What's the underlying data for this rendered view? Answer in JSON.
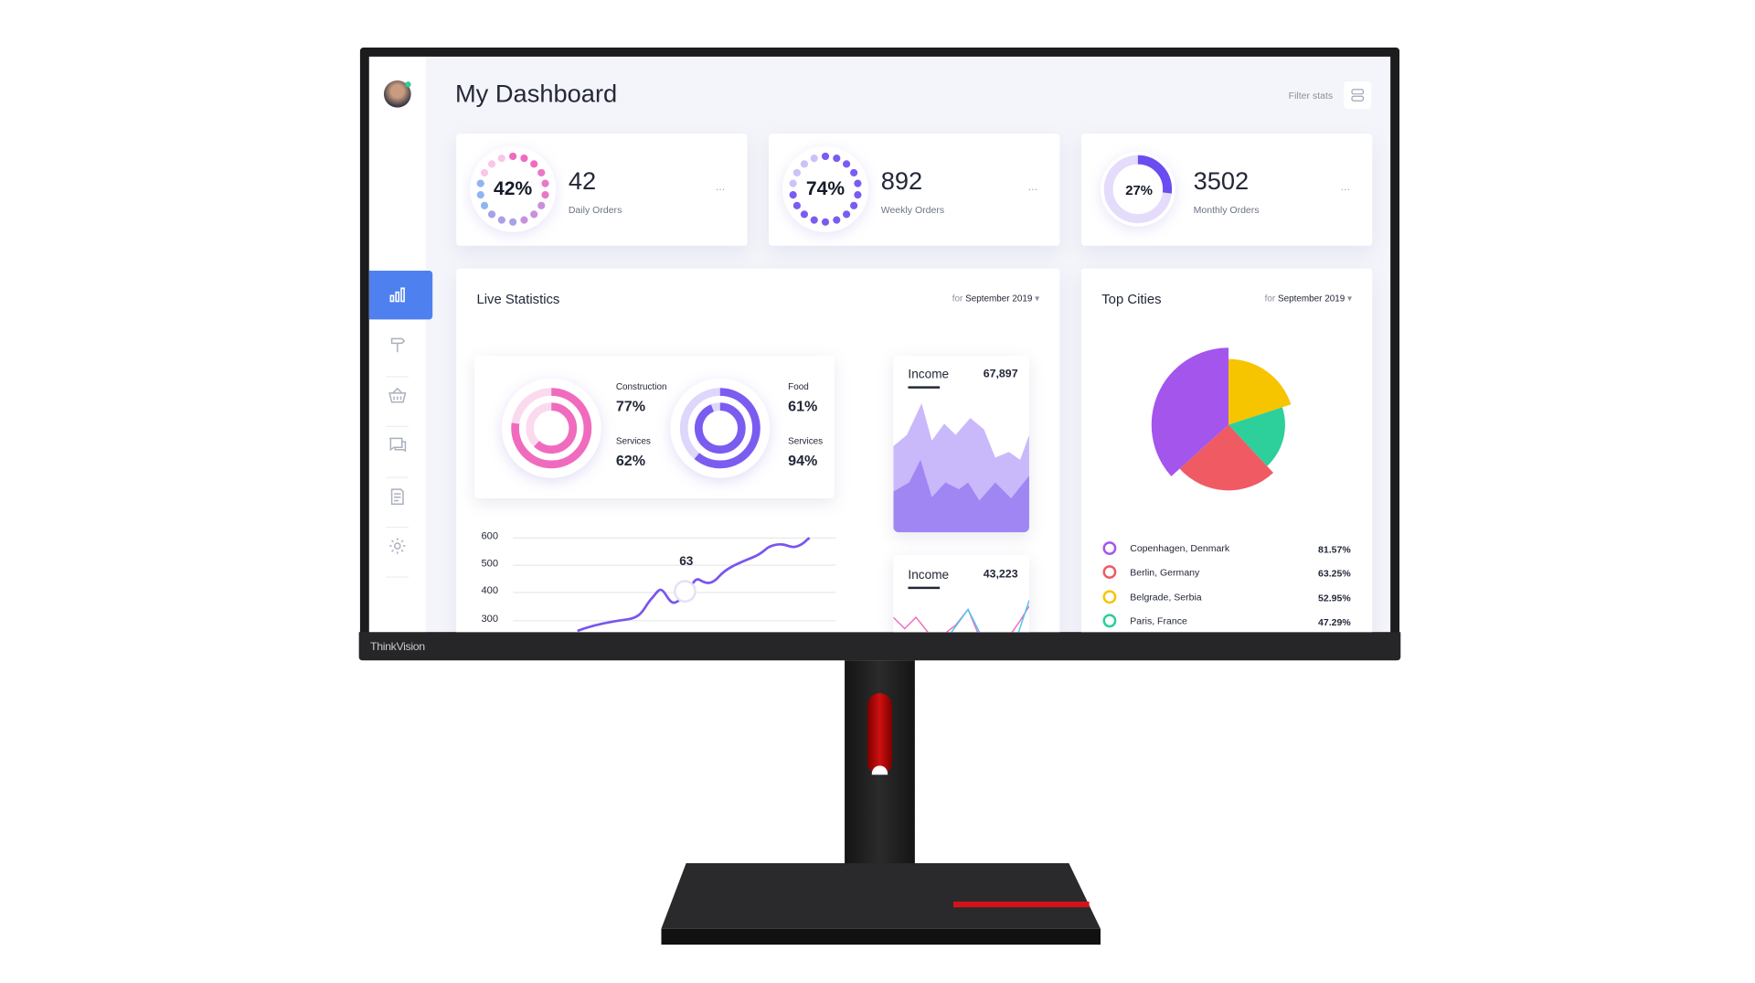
{
  "device": {
    "brand": "ThinkVision"
  },
  "header": {
    "title": "My Dashboard",
    "filter_label": "Filter stats",
    "filter_icon": "layout-icon"
  },
  "sidebar": {
    "items": [
      {
        "icon": "bar-chart-icon",
        "active": true
      },
      {
        "icon": "signpost-icon"
      },
      {
        "icon": "basket-icon"
      },
      {
        "icon": "chat-icon"
      },
      {
        "icon": "clipboard-icon"
      },
      {
        "icon": "gear-icon"
      }
    ],
    "accent": "#4f80f0"
  },
  "stats": [
    {
      "percent": "42%",
      "value": "42",
      "label": "Daily Orders",
      "progress": 0.42,
      "menu": "..."
    },
    {
      "percent": "74%",
      "value": "892",
      "label": "Weekly Orders",
      "progress": 0.74,
      "menu": "..."
    },
    {
      "percent": "27%",
      "value": "3502",
      "label": "Monthly Orders",
      "progress": 0.27,
      "menu": "..."
    }
  ],
  "live": {
    "title": "Live Statistics",
    "for": "for",
    "period": "September 2019",
    "rings": [
      {
        "top_label": "Construction",
        "top_value": "77%",
        "bottom_label": "Services",
        "bottom_value": "62%",
        "color": "#f06bbd"
      },
      {
        "top_label": "Food",
        "top_value": "61%",
        "bottom_label": "Services",
        "bottom_value": "94%",
        "color": "#7b5cf0"
      }
    ],
    "line": {
      "y_ticks": [
        "600",
        "500",
        "400",
        "300"
      ],
      "marker_value": "63",
      "color": "#7a55ee"
    },
    "income": [
      {
        "label": "Income",
        "value": "67,897"
      },
      {
        "label": "Income",
        "value": "43,223"
      }
    ]
  },
  "cities": {
    "title": "Top Cities",
    "for": "for",
    "period": "September 2019",
    "items": [
      {
        "name": "Copenhagen, Denmark",
        "value": "81.57%",
        "color": "#a455ec"
      },
      {
        "name": "Berlin, Germany",
        "value": "63.25%",
        "color": "#ef5a63"
      },
      {
        "name": "Belgrade, Serbia",
        "value": "52.95%",
        "color": "#f7c400"
      },
      {
        "name": "Paris, France",
        "value": "47.29%",
        "color": "#2dcf9a"
      }
    ]
  }
}
